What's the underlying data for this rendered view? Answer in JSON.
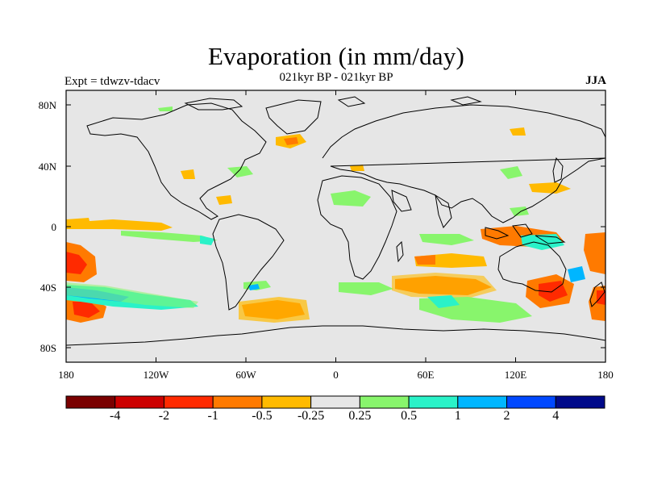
{
  "title": "Evaporation (in mm/day)",
  "subtitle": "021kyr BP - 021kyr BP",
  "expt_label": "Expt = tdwzv-tdacv",
  "season": "JJA",
  "lat_ticks": [
    "80N",
    "40N",
    "0",
    "40S",
    "80S"
  ],
  "lon_ticks": [
    "180",
    "120W",
    "60W",
    "0",
    "60E",
    "120E",
    "180"
  ],
  "colorbar": {
    "colors": [
      "#7a0000",
      "#cc0000",
      "#ff2a00",
      "#ff7a00",
      "#ffba00",
      "#e6e6e6",
      "#88f56c",
      "#2af2c8",
      "#00b6ff",
      "#0048ff",
      "#000a8a"
    ],
    "labels": [
      "-4",
      "-2",
      "-1",
      "-0.5",
      "-0.25",
      "0.25",
      "0.5",
      "1",
      "2",
      "4"
    ]
  },
  "colors": {
    "background": "#e6e6e6",
    "coast": "#000000"
  }
}
